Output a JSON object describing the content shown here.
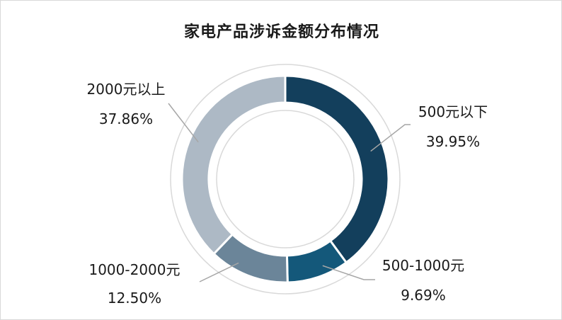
{
  "chart_data": {
    "type": "pie",
    "title": "家电产品涉诉金额分布情况",
    "categories": [
      "500元以下",
      "500-1000元",
      "1000-2000元",
      "2000元以上"
    ],
    "values": [
      39.95,
      9.69,
      12.5,
      37.86
    ],
    "value_labels": [
      "39.95%",
      "9.69%",
      "12.50%",
      "37.86%"
    ],
    "colors": [
      "#133f5c",
      "#14587a",
      "#6b8599",
      "#adb9c5"
    ],
    "donut": true,
    "legend": "none"
  }
}
